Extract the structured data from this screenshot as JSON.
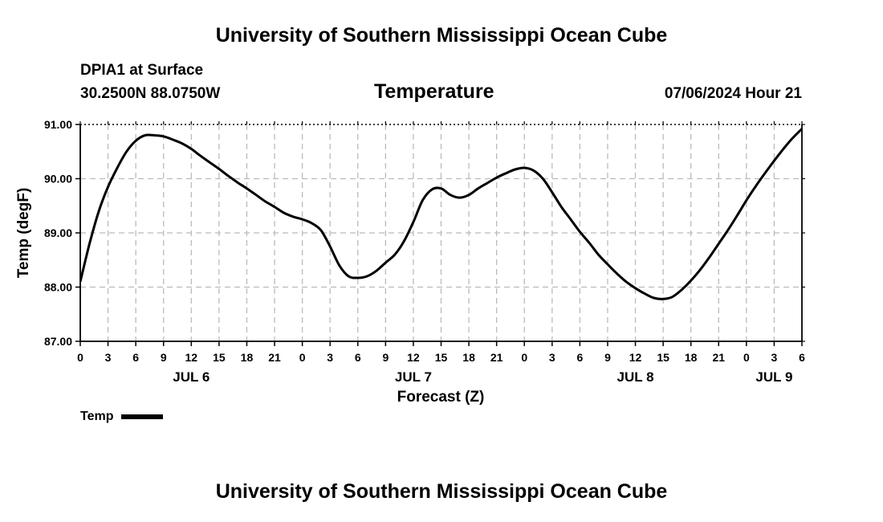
{
  "header": {
    "title": "University of Southern Mississippi Ocean Cube",
    "station": "DPIA1 at Surface",
    "coords": "30.2500N  88.0750W",
    "variable": "Temperature",
    "datetime": "07/06/2024 Hour 21"
  },
  "footer": {
    "title": "University of Southern Mississippi Ocean Cube"
  },
  "legend": {
    "label": "Temp"
  },
  "colors": {
    "line": "#000000",
    "grid": "#bbbbbb"
  },
  "chart_data": {
    "type": "line",
    "title": "Temperature",
    "xlabel": "Forecast (Z)",
    "ylabel": "Temp (degF)",
    "xlim": [
      0,
      78
    ],
    "ylim": [
      87.0,
      91.0
    ],
    "yticks": [
      87.0,
      88.0,
      89.0,
      90.0,
      91.0
    ],
    "ytick_labels": [
      "87.00",
      "88.00",
      "89.00",
      "90.00",
      "91.00"
    ],
    "xtick_labels": [
      "0",
      "3",
      "6",
      "9",
      "12",
      "15",
      "18",
      "21",
      "0",
      "3",
      "6",
      "9",
      "12",
      "15",
      "18",
      "21",
      "0",
      "3",
      "6",
      "9",
      "12",
      "15",
      "18",
      "21",
      "0",
      "3",
      "6"
    ],
    "date_labels": [
      {
        "label": "JUL 6",
        "x": 12
      },
      {
        "label": "JUL 7",
        "x": 36
      },
      {
        "label": "JUL 8",
        "x": 60
      },
      {
        "label": "JUL 9",
        "x": 75
      }
    ],
    "grid": true,
    "series": [
      {
        "name": "Temp",
        "x": [
          0,
          1,
          2,
          3,
          4,
          5,
          6,
          7,
          8,
          9,
          10,
          11,
          12,
          13,
          14,
          15,
          16,
          17,
          18,
          19,
          20,
          21,
          22,
          23,
          24,
          25,
          26,
          27,
          28,
          29,
          30,
          31,
          32,
          33,
          34,
          35,
          36,
          37,
          38,
          39,
          40,
          41,
          42,
          43,
          44,
          45,
          46,
          47,
          48,
          49,
          50,
          51,
          52,
          53,
          54,
          55,
          56,
          57,
          58,
          59,
          60,
          61,
          62,
          63,
          64,
          65,
          66,
          67,
          68,
          69,
          70,
          71,
          72,
          73,
          74,
          75,
          76,
          77,
          78
        ],
        "values": [
          88.1,
          88.8,
          89.4,
          89.85,
          90.2,
          90.5,
          90.7,
          90.8,
          90.8,
          90.78,
          90.72,
          90.65,
          90.55,
          90.42,
          90.3,
          90.18,
          90.05,
          89.93,
          89.82,
          89.7,
          89.58,
          89.48,
          89.37,
          89.3,
          89.25,
          89.18,
          89.05,
          88.75,
          88.4,
          88.2,
          88.17,
          88.2,
          88.3,
          88.45,
          88.6,
          88.85,
          89.2,
          89.6,
          89.8,
          89.82,
          89.7,
          89.65,
          89.7,
          89.82,
          89.92,
          90.02,
          90.1,
          90.17,
          90.2,
          90.15,
          90.0,
          89.75,
          89.48,
          89.25,
          89.02,
          88.82,
          88.6,
          88.42,
          88.25,
          88.1,
          87.98,
          87.88,
          87.8,
          87.78,
          87.82,
          87.95,
          88.12,
          88.32,
          88.55,
          88.8,
          89.05,
          89.32,
          89.6,
          89.86,
          90.1,
          90.33,
          90.55,
          90.75,
          90.92
        ]
      }
    ]
  }
}
